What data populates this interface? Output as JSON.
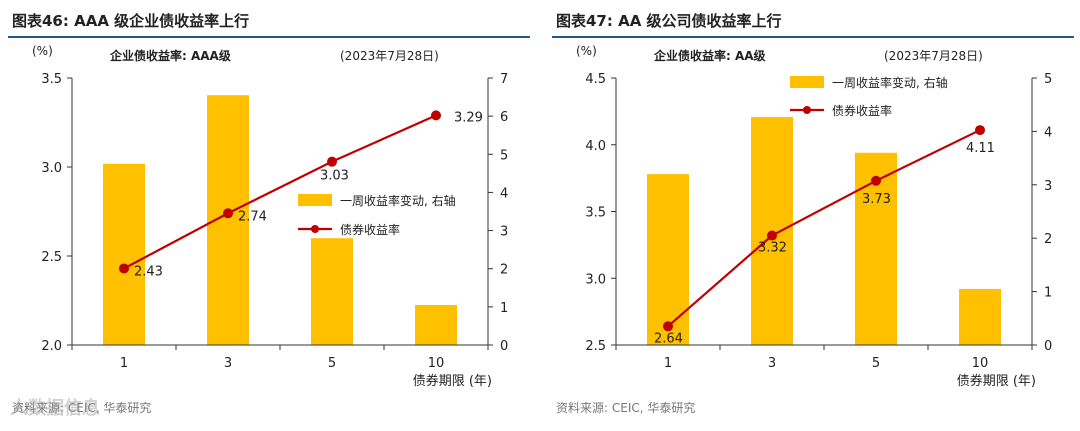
{
  "chart_data": [
    {
      "type": "bar",
      "title": "图表46:  AAA 级企业债收益率上行",
      "subtitle": "企业债收益率: AAA级",
      "date_label": "(2023年7月28日)",
      "unit_left": "(%)",
      "xlabel": "债券期限 (年)",
      "categories": [
        "1",
        "3",
        "5",
        "10"
      ],
      "left_axis": {
        "ylim": [
          2.0,
          3.5
        ],
        "ticks": [
          "2.0",
          "2.5",
          "3.0",
          "3.5"
        ]
      },
      "right_axis": {
        "ylim": [
          0,
          7
        ],
        "ticks": [
          "0",
          "1",
          "2",
          "3",
          "4",
          "5",
          "6",
          "7"
        ]
      },
      "series": [
        {
          "name": "一周收益率变动, 右轴",
          "type": "bar",
          "axis": "right",
          "values": [
            4.75,
            6.55,
            2.8,
            1.05
          ]
        },
        {
          "name": "债券收益率",
          "type": "line",
          "axis": "left",
          "values": [
            2.43,
            2.74,
            3.03,
            3.29
          ],
          "labels": [
            "2.43",
            "2.74",
            "3.03",
            "3.29"
          ]
        }
      ],
      "legend": "right-middle",
      "source": "资料来源: CEIC, 华泰研究"
    },
    {
      "type": "bar",
      "title": "图表47:  AA 级公司债收益率上行",
      "subtitle": "企业债收益率: AA级",
      "date_label": "(2023年7月28日)",
      "unit_left": "(%)",
      "xlabel": "债券期限 (年)",
      "categories": [
        "1",
        "3",
        "5",
        "10"
      ],
      "left_axis": {
        "ylim": [
          2.5,
          4.5
        ],
        "ticks": [
          "2.5",
          "3.0",
          "3.5",
          "4.0",
          "4.5"
        ]
      },
      "right_axis": {
        "ylim": [
          0,
          5
        ],
        "ticks": [
          "0",
          "1",
          "2",
          "3",
          "4",
          "5"
        ]
      },
      "series": [
        {
          "name": "一周收益率变动, 右轴",
          "type": "bar",
          "axis": "right",
          "values": [
            3.2,
            4.27,
            3.6,
            1.05
          ]
        },
        {
          "name": "债券收益率",
          "type": "line",
          "axis": "left",
          "values": [
            2.64,
            3.32,
            3.73,
            4.11
          ],
          "labels": [
            "2.64",
            "3.32",
            "3.73",
            "4.11"
          ]
        }
      ],
      "legend": "top-center",
      "source": "资料来源: CEIC, 华泰研究"
    }
  ],
  "colors": {
    "bar": "#ffc000",
    "line": "#c00000",
    "title_rule": "#1f5a8c"
  },
  "watermark": "人数据信息"
}
